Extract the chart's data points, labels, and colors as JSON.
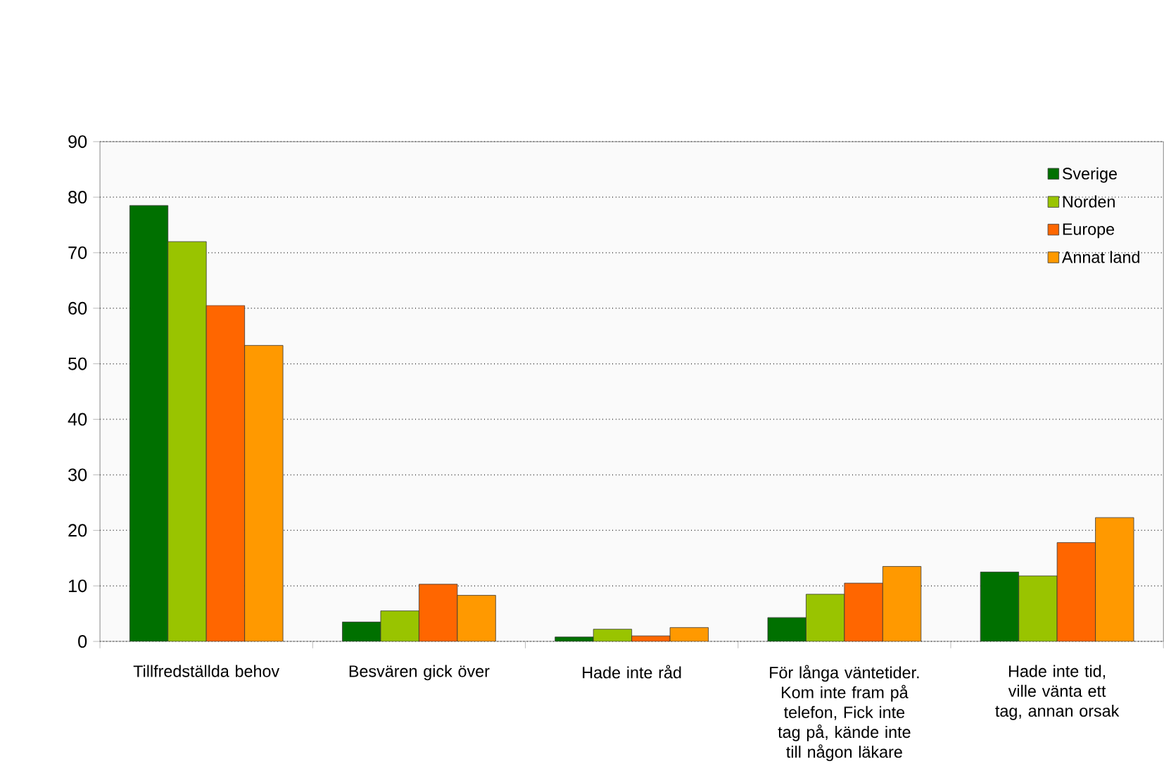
{
  "chart_data": {
    "type": "bar",
    "categories": [
      "Tillfredställda behov",
      "Besvären gick över",
      "Hade inte råd",
      "För långa väntetider. Kom inte fram på telefon, Fick inte tag på, kände inte till någon läkare",
      "Hade inte tid, ville vänta ett tag, annan orsak"
    ],
    "series": [
      {
        "name": "Sverige",
        "color": "#007000",
        "values": [
          78.5,
          3.5,
          0.8,
          4.3,
          12.5
        ]
      },
      {
        "name": "Norden",
        "color": "#99c400",
        "values": [
          72,
          5.5,
          2.2,
          8.5,
          11.8
        ]
      },
      {
        "name": "Europe",
        "color": "#ff6600",
        "values": [
          60.5,
          10.3,
          1.0,
          10.5,
          17.8
        ]
      },
      {
        "name": "Annat land",
        "color": "#ff9900",
        "values": [
          53.3,
          8.3,
          2.5,
          13.5,
          22.3
        ]
      }
    ],
    "ylim": [
      0,
      90
    ],
    "yticks": [
      0,
      10,
      20,
      30,
      40,
      50,
      60,
      70,
      80,
      90
    ],
    "grid": "y",
    "legend": "top right"
  }
}
